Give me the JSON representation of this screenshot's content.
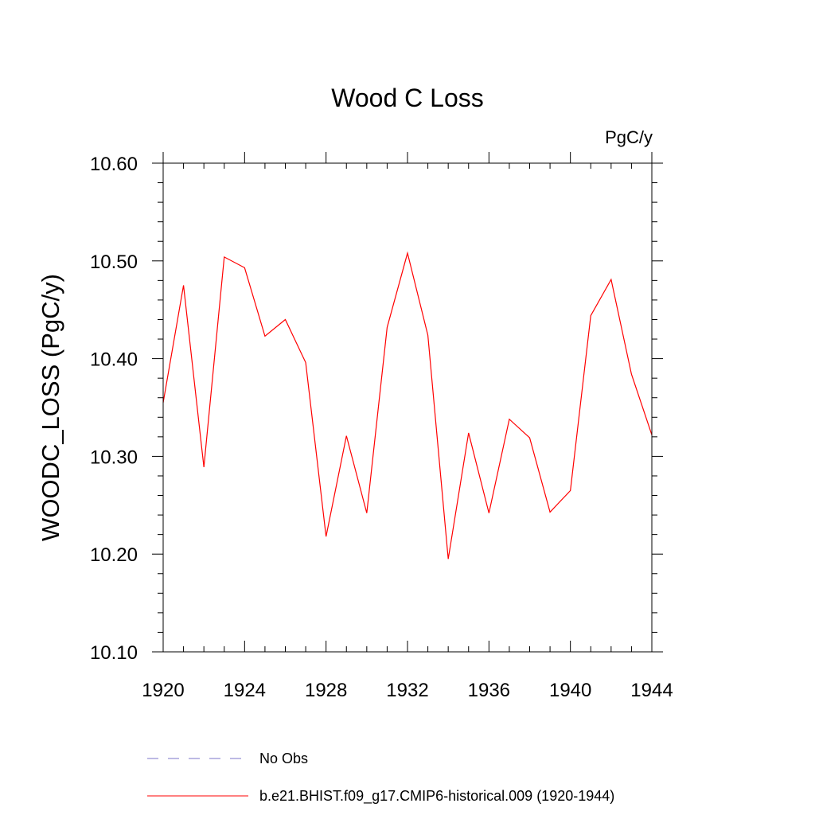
{
  "chart_data": {
    "type": "line",
    "title": "Wood C Loss",
    "units_label": "PgC/y",
    "xlabel": "",
    "ylabel": "WOODC_LOSS  (PgC/y)",
    "xlim": [
      1920,
      1944
    ],
    "ylim": [
      10.1,
      10.6
    ],
    "xticks": [
      1920,
      1924,
      1928,
      1932,
      1936,
      1940,
      1944
    ],
    "xtick_labels": [
      "1920",
      "1924",
      "1928",
      "1932",
      "1936",
      "1940",
      "1944"
    ],
    "yticks": [
      10.1,
      10.2,
      10.3,
      10.4,
      10.5,
      10.6
    ],
    "ytick_labels": [
      "10.10",
      "10.20",
      "10.30",
      "10.40",
      "10.50",
      "10.60"
    ],
    "grid": false,
    "series": [
      {
        "name": "b.e21.BHIST.f09_g17.CMIP6-historical.009 (1920-1944)",
        "color": "#ff0000",
        "x": [
          1920,
          1921,
          1922,
          1923,
          1924,
          1925,
          1926,
          1927,
          1928,
          1929,
          1930,
          1931,
          1932,
          1933,
          1934,
          1935,
          1936,
          1937,
          1938,
          1939,
          1940,
          1941,
          1942,
          1943,
          1944
        ],
        "values": [
          10.355,
          10.475,
          10.289,
          10.504,
          10.493,
          10.423,
          10.44,
          10.396,
          10.218,
          10.321,
          10.242,
          10.432,
          10.508,
          10.424,
          10.195,
          10.324,
          10.242,
          10.338,
          10.319,
          10.243,
          10.265,
          10.444,
          10.481,
          10.384,
          10.322
        ]
      }
    ],
    "legend": {
      "placement": "bottom",
      "entries": [
        {
          "label": "No Obs",
          "color": "#7b74c9",
          "style": "dashed"
        },
        {
          "label": "b.e21.BHIST.f09_g17.CMIP6-historical.009 (1920-1944)",
          "color": "#ff0000",
          "style": "solid"
        }
      ]
    }
  }
}
